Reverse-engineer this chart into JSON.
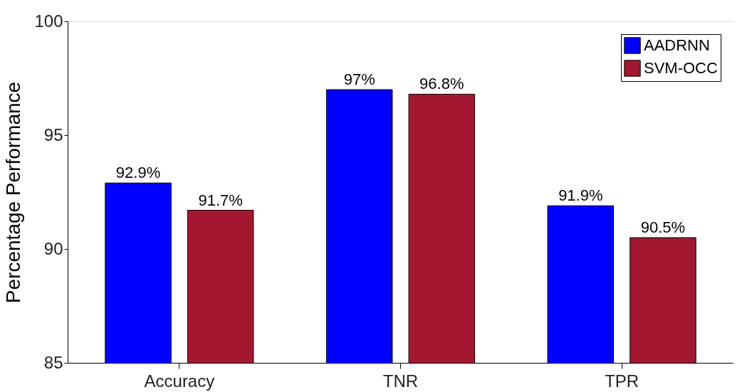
{
  "chart_data": {
    "type": "bar",
    "ylabel": "Percentage Performance",
    "categories": [
      "Accuracy",
      "TNR",
      "TPR"
    ],
    "series": [
      {
        "name": "AADRNN",
        "color": "#0000ff",
        "values": [
          92.9,
          97,
          91.9
        ],
        "value_labels": [
          "92.9%",
          "97%",
          "91.9%"
        ]
      },
      {
        "name": "SVM-OCC",
        "color": "#a31830",
        "values": [
          91.7,
          96.8,
          90.5
        ],
        "value_labels": [
          "91.7%",
          "96.8%",
          "90.5%"
        ]
      }
    ],
    "ylim": [
      85,
      100
    ],
    "yticks": [
      85,
      90,
      95,
      100
    ],
    "grid": false,
    "legend": "top right"
  }
}
